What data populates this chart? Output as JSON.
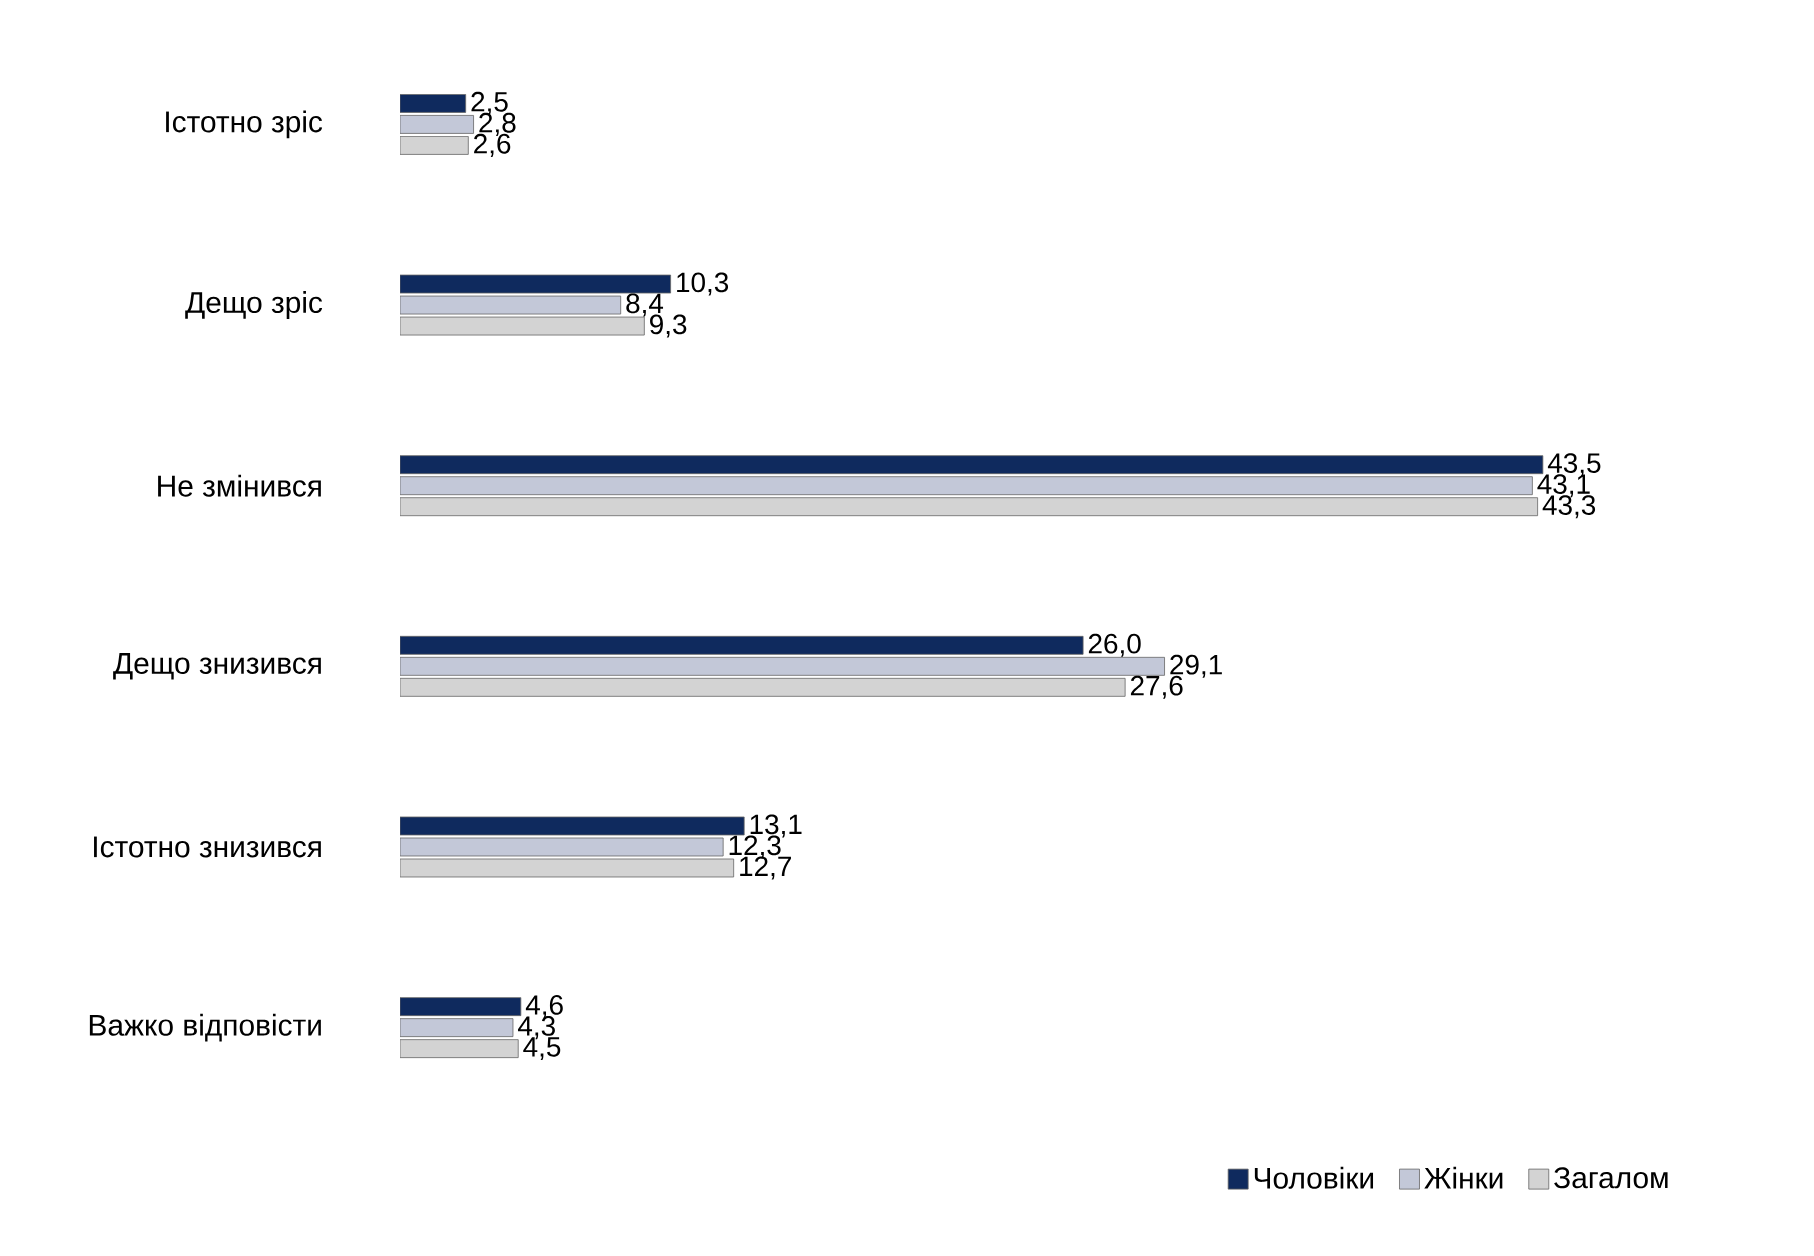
{
  "chart_data": {
    "type": "bar",
    "orientation": "horizontal",
    "legend": "bottom right",
    "categories": [
      "Істотно зріс",
      "Дещо зріс",
      "Не змінився",
      "Дещо знизився",
      "Істотно знизився",
      "Важко відповісти"
    ],
    "series": [
      {
        "name": "Чоловіки",
        "color": "#0f2a5e",
        "values": [
          2.5,
          10.3,
          43.5,
          26.0,
          13.1,
          4.6
        ],
        "value_labels": [
          "2,5",
          "10,3",
          "43,5",
          "26,0",
          "13,1",
          "4,6"
        ]
      },
      {
        "name": "Жінки",
        "color": "#c3c8d8",
        "values": [
          2.8,
          8.4,
          43.1,
          29.1,
          12.3,
          4.3
        ],
        "value_labels": [
          "2,8",
          "8,4",
          "43,1",
          "29,1",
          "12,3",
          "4,3"
        ]
      },
      {
        "name": "Загалом",
        "color": "#d3d3d3",
        "values": [
          2.6,
          9.3,
          43.3,
          27.6,
          12.7,
          4.5
        ],
        "value_labels": [
          "2,6",
          "9,3",
          "43,3",
          "27,6",
          "12,7",
          "4,5"
        ]
      }
    ]
  }
}
